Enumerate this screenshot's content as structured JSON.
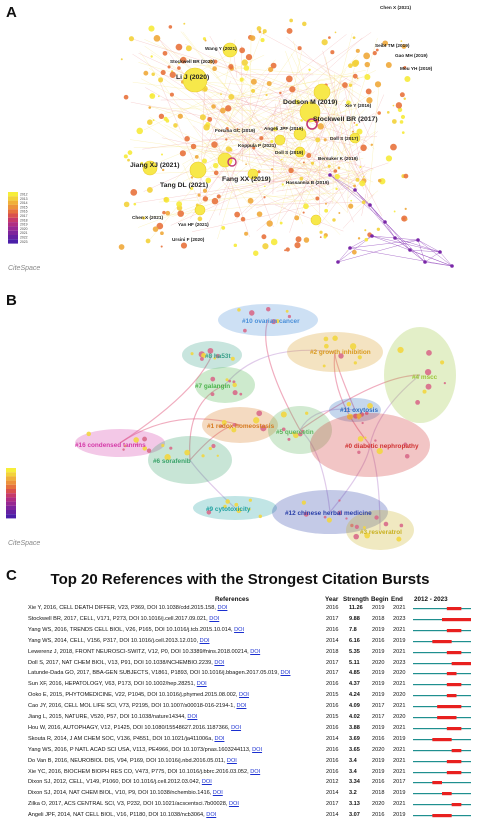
{
  "panel_a": {
    "letter": "A",
    "logo": "CiteSpace",
    "legend_years": [
      "2012",
      "2013",
      "2014",
      "2015",
      "2016",
      "2017",
      "2018",
      "2019",
      "2020",
      "2021",
      "2022",
      "2023"
    ],
    "labels": [
      "Chen X (2021)",
      "Wang Y (2021)",
      "Seibt TM (2019)",
      "Gao MH (2019)",
      "Stockwell BR (2020)",
      "Mou YH (2019)",
      "Li J (2020)",
      "Dodson M (2019)",
      "Xie Y (2016)",
      "Stockwell BR (2017)",
      "Angeli JPF (2019)",
      "Doll S (2017)",
      "Forcina GC (2019)",
      "Koppula P (2021)",
      "Doll S (2019)",
      "Bersuker K (2019)",
      "Jiang XJ (2021)",
      "Fang XX (2019)",
      "Tang DL (2021)",
      "Hassannia B (2019)",
      "Chen X (2021)",
      "Yan HF (2021)",
      "Ursini F (2020)"
    ]
  },
  "panel_b": {
    "letter": "B",
    "logo": "CiteSpace",
    "clusters": [
      {
        "label": "#10 ovarian cancer",
        "color": "#4a8fd8"
      },
      {
        "label": "#8 ha53t",
        "color": "#3aa08a"
      },
      {
        "label": "#2 growth inhibition",
        "color": "#d99a20"
      },
      {
        "label": "#7 galangin",
        "color": "#4bb34b"
      },
      {
        "label": "#4 mscc",
        "color": "#9cc53a"
      },
      {
        "label": "#1 redox homeostasis",
        "color": "#d67a20"
      },
      {
        "label": "#11 oxytosis",
        "color": "#2f6fbf"
      },
      {
        "label": "#16 condensed tannins",
        "color": "#d43aa8"
      },
      {
        "label": "#5 quercetin",
        "color": "#5fb35f"
      },
      {
        "label": "#0 diabetic nephropathy",
        "color": "#d03030"
      },
      {
        "label": "#6 sorafenib",
        "color": "#3aa36a"
      },
      {
        "label": "#9 cytotoxicity",
        "color": "#1fa0a0"
      },
      {
        "label": "#12 chinese herbal medicine",
        "color": "#2a3fa8"
      },
      {
        "label": "#3 resveratrol",
        "color": "#c8b020"
      }
    ]
  },
  "panel_c": {
    "letter": "C",
    "chart_data": {
      "type": "table",
      "title": "Top 20 References with the Strongest Citation Bursts",
      "columns": [
        "References",
        "Year",
        "Strength",
        "Begin",
        "End",
        "2012 - 2023"
      ],
      "range": [
        2012,
        2023
      ],
      "rows": [
        {
          "ref": "Xie Y, 2016, CELL DEATH DIFFER, V23, P369, DOI 10.1038/cdd.2015.158,",
          "year": "2016",
          "strength": "11.26",
          "begin": "2019",
          "end": "2021"
        },
        {
          "ref": "Stockwell BR, 2017, CELL, V171, P273, DOI 10.1016/j.cell.2017.09.021,",
          "year": "2017",
          "strength": "9.88",
          "begin": "2018",
          "end": "2023"
        },
        {
          "ref": "Yang WS, 2016, TRENDS CELL BIOL, V26, P165, DOI 10.1016/j.tcb.2015.10.014,",
          "year": "2016",
          "strength": "7.8",
          "begin": "2019",
          "end": "2021"
        },
        {
          "ref": "Yang WS, 2014, CELL, V156, P317, DOI 10.1016/j.cell.2013.12.010,",
          "year": "2014",
          "strength": "6.16",
          "begin": "2016",
          "end": "2019"
        },
        {
          "ref": "Lewerenz J, 2018, FRONT NEUROSCI-SWITZ, V12, P0, DOI 10.3389/fnins.2018.00214,",
          "year": "2018",
          "strength": "5.35",
          "begin": "2019",
          "end": "2021"
        },
        {
          "ref": "Doll S, 2017, NAT CHEM BIOL, V13, P91, DOI 10.1038/NCHEMBIO.2239,",
          "year": "2017",
          "strength": "5.11",
          "begin": "2020",
          "end": "2023"
        },
        {
          "ref": "Latunde-Dada GO, 2017, BBA-GEN SUBJECTS, V1861, P1893, DOI 10.1016/j.bbagen.2017.05.019,",
          "year": "2017",
          "strength": "4.85",
          "begin": "2019",
          "end": "2020"
        },
        {
          "ref": "Sun XF, 2016, HEPATOLOGY, V63, P173, DOI 10.1002/hep.28251,",
          "year": "2016",
          "strength": "4.37",
          "begin": "2019",
          "end": "2021"
        },
        {
          "ref": "Ooko E, 2015, PHYTOMEDICINE, V22, P1045, DOI 10.1016/j.phymed.2015.08.002,",
          "year": "2015",
          "strength": "4.24",
          "begin": "2019",
          "end": "2020"
        },
        {
          "ref": "Cao JY, 2016, CELL MOL LIFE SCI, V73, P2195, DOI 10.1007/s00018-016-2194-1,",
          "year": "2016",
          "strength": "4.09",
          "begin": "2017",
          "end": "2021"
        },
        {
          "ref": "Jiang L, 2015, NATURE, V520, P57, DOI 10.1038/nature14344,",
          "year": "2015",
          "strength": "4.02",
          "begin": "2017",
          "end": "2020"
        },
        {
          "ref": "Hou W, 2016, AUTOPHAGY, V12, P1425, DOI 10.1080/15548627.2016.1187366,",
          "year": "2016",
          "strength": "3.88",
          "begin": "2019",
          "end": "2021"
        },
        {
          "ref": "Skouta R, 2014, J AM CHEM SOC, V136, P4551, DOI 10.1021/ja411006a,",
          "year": "2014",
          "strength": "3.69",
          "begin": "2016",
          "end": "2019"
        },
        {
          "ref": "Yang WS, 2016, P NATL ACAD SCI USA, V113, PE4966, DOI 10.1073/pnas.1603244113,",
          "year": "2016",
          "strength": "3.65",
          "begin": "2020",
          "end": "2021"
        },
        {
          "ref": "Do Van B, 2016, NEUROBIOL DIS, V94, P169, DOI 10.1016/j.nbd.2016.05.011,",
          "year": "2016",
          "strength": "3.4",
          "begin": "2019",
          "end": "2021"
        },
        {
          "ref": "Xie YC, 2016, BIOCHEM BIOPH RES CO, V473, P775, DOI 10.1016/j.bbrc.2016.03.052,",
          "year": "2016",
          "strength": "3.4",
          "begin": "2019",
          "end": "2021"
        },
        {
          "ref": "Dixon SJ, 2012, CELL, V149, P1060, DOI 10.1016/j.cell.2012.03.042,",
          "year": "2012",
          "strength": "3.34",
          "begin": "2016",
          "end": "2017"
        },
        {
          "ref": "Dixon SJ, 2014, NAT CHEM BIOL, V10, P9, DOI 10.1038/nchembio.1416,",
          "year": "2014",
          "strength": "3.2",
          "begin": "2018",
          "end": "2019"
        },
        {
          "ref": "Zilka O, 2017, ACS CENTRAL SCI, V3, P232, DOI 10.1021/acscentsci.7b00028,",
          "year": "2017",
          "strength": "3.13",
          "begin": "2020",
          "end": "2021"
        },
        {
          "ref": "Angeli JPF, 2014, NAT CELL BIOL, V16, P1180, DOI 10.1038/ncb3064,",
          "year": "2014",
          "strength": "3.07",
          "begin": "2016",
          "end": "2019"
        }
      ],
      "doi_link_text": "DOI",
      "colors": {
        "baseline": "#1f8f8f",
        "burst": "#e8201f",
        "link": "#1a2fd0"
      }
    }
  }
}
